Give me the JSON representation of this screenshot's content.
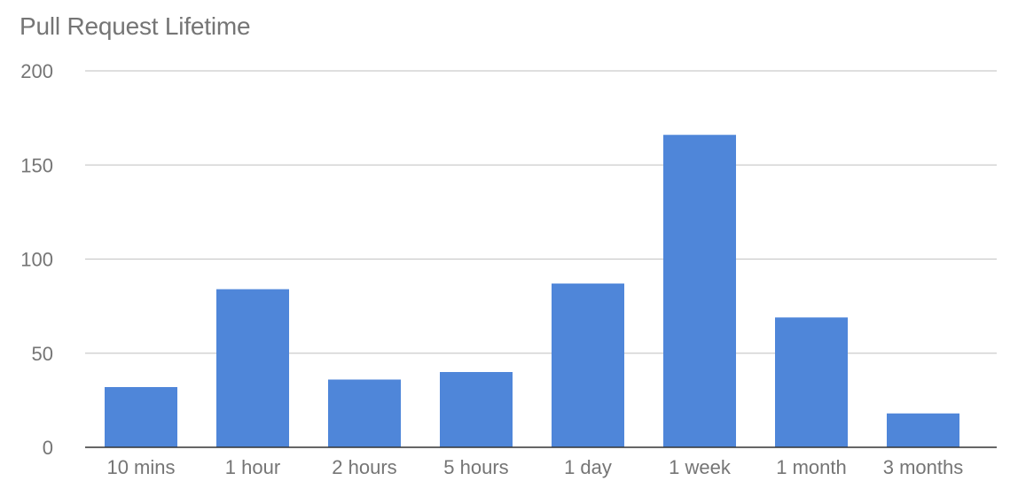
{
  "chart_data": {
    "type": "bar",
    "title": "Pull Request Lifetime",
    "xlabel": "",
    "ylabel": "",
    "categories": [
      "10 mins",
      "1 hour",
      "2 hours",
      "5 hours",
      "1 day",
      "1 week",
      "1 month",
      "3 months"
    ],
    "values": [
      32,
      84,
      36,
      40,
      87,
      166,
      69,
      18
    ],
    "ylim": [
      0,
      200
    ],
    "yticks": [
      0,
      50,
      100,
      150,
      200
    ],
    "grid": true,
    "legend": "none",
    "bar_color": "#4f86d9",
    "grid_color": "#cccccc",
    "axis_color": "#333333",
    "text_color": "#757575"
  }
}
